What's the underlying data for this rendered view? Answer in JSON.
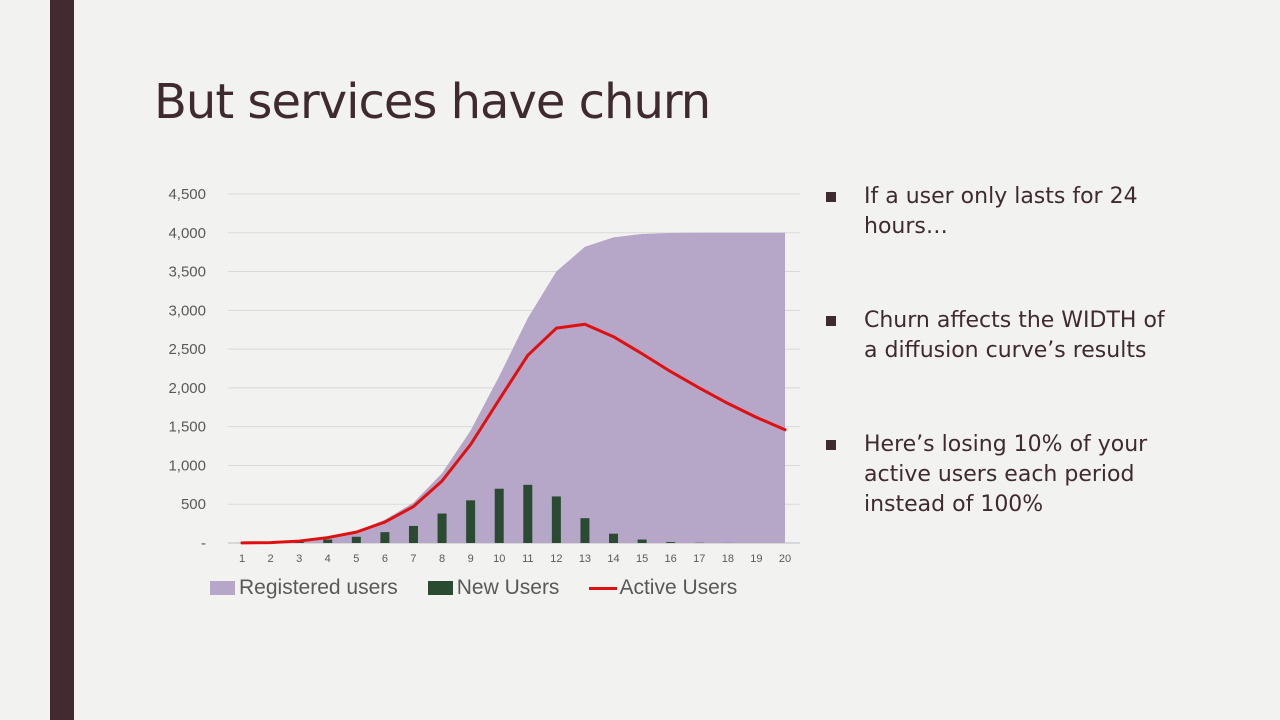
{
  "slide": {
    "title": "But services have churn"
  },
  "bullets": [
    {
      "text": "If a user only lasts for 24 hours…"
    },
    {
      "text": "Churn affects the WIDTH of a diffusion curve’s results"
    },
    {
      "text": "Here’s losing 10% of your active users each period instead of 100%"
    }
  ],
  "colors": {
    "accent_bar": "#412a30",
    "registered_users": "#b6a6c8",
    "new_users": "#2b4a32",
    "active_users": "#e01010"
  },
  "chart_data": {
    "type": "area",
    "title": "",
    "xlabel": "",
    "ylabel": "",
    "ylim": [
      0,
      4500
    ],
    "grid": true,
    "legend_position": "bottom",
    "y_tick_labels": [
      "-",
      "500",
      "1,000",
      "1,500",
      "2,000",
      "2,500",
      "3,000",
      "3,500",
      "4,000",
      "4,500"
    ],
    "categories": [
      "1",
      "2",
      "3",
      "4",
      "5",
      "6",
      "7",
      "8",
      "9",
      "10",
      "11",
      "12",
      "13",
      "14",
      "15",
      "16",
      "17",
      "18",
      "19",
      "20"
    ],
    "series": [
      {
        "name": "Registered users",
        "type": "area",
        "values": [
          1,
          5,
          25,
          70,
          150,
          300,
          520,
          900,
          1450,
          2150,
          2900,
          3500,
          3820,
          3940,
          3985,
          3997,
          4000,
          4000,
          4000,
          4000
        ]
      },
      {
        "name": "New Users",
        "type": "bar",
        "values": [
          1,
          4,
          20,
          45,
          80,
          140,
          220,
          380,
          550,
          700,
          750,
          600,
          320,
          120,
          45,
          12,
          3,
          1,
          0,
          0
        ]
      },
      {
        "name": "Active Users",
        "type": "line",
        "values": [
          1,
          5,
          25,
          70,
          140,
          270,
          470,
          800,
          1270,
          1850,
          2420,
          2770,
          2820,
          2660,
          2440,
          2210,
          2000,
          1800,
          1620,
          1460
        ]
      }
    ]
  }
}
